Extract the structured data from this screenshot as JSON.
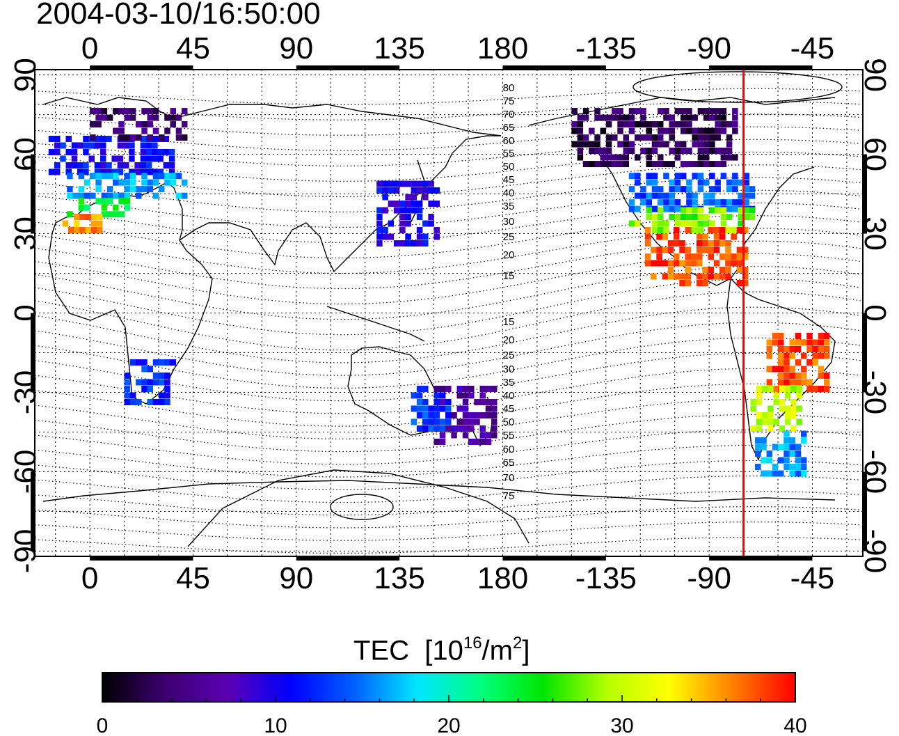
{
  "title": "2004-03-10/16:50:00",
  "map": {
    "lon_ticks": [
      "0",
      "45",
      "90",
      "135",
      "180",
      "-135",
      "-90",
      "-45"
    ],
    "lon_tick_values": [
      0,
      45,
      90,
      135,
      180,
      225,
      270,
      315
    ],
    "lat_ticks": [
      "90",
      "60",
      "30",
      "0",
      "-30",
      "-60",
      "-90"
    ],
    "lat_tick_values": [
      90,
      60,
      30,
      0,
      -30,
      -60,
      -90
    ],
    "lon_range": [
      -24,
      337
    ],
    "lat_range": [
      -92,
      92
    ],
    "grid": "dotted, every 15 degrees",
    "red_meridian_lon": -75,
    "magnetic_lat_labels": [
      "80",
      "75",
      "70",
      "65",
      "60",
      "55",
      "50",
      "45",
      "40",
      "35",
      "30",
      "25",
      "20",
      "15",
      "15",
      "20",
      "25",
      "30",
      "35",
      "40",
      "45",
      "50",
      "55",
      "60",
      "65",
      "70",
      "75"
    ]
  },
  "colorbar": {
    "title": "TEC",
    "unit_prefix": "[10",
    "unit_exp": "16",
    "unit_mid": "/m",
    "unit_exp2": "2",
    "unit_suffix": "]",
    "ticks": [
      "0",
      "10",
      "20",
      "30",
      "40"
    ],
    "tick_values": [
      0,
      10,
      20,
      30,
      40
    ],
    "range": [
      0,
      40
    ],
    "stops": [
      "#000000",
      "#3c0070",
      "#5a00b4",
      "#0000ff",
      "#0060ff",
      "#00e6ff",
      "#00ff80",
      "#00e600",
      "#b4ff00",
      "#ffff00",
      "#ff8000",
      "#ff0000"
    ]
  },
  "chart_data": {
    "type": "heatmap",
    "title": "2004-03-10/16:50:00",
    "xlabel": "",
    "ylabel": "",
    "xlim": [
      -24,
      337
    ],
    "ylim": [
      -92,
      92
    ],
    "colorbar_label": "TEC [10^16/m^2]",
    "colorbar_range": [
      0,
      40
    ],
    "regions": [
      {
        "lon": [
          -18,
          35
        ],
        "lat": [
          52,
          65
        ],
        "tec": 11
      },
      {
        "lon": [
          -10,
          40
        ],
        "lat": [
          43,
          52
        ],
        "tec": 16
      },
      {
        "lon": [
          -10,
          15
        ],
        "lat": [
          36,
          43
        ],
        "tec": 24
      },
      {
        "lon": [
          -12,
          5
        ],
        "lat": [
          30,
          35
        ],
        "tec": 36
      },
      {
        "lon": [
          0,
          40
        ],
        "lat": [
          65,
          75
        ],
        "tec": 4
      },
      {
        "lon": [
          125,
          150
        ],
        "lat": [
          25,
          48
        ],
        "tec": 10
      },
      {
        "lon": [
          -125,
          -72
        ],
        "lat": [
          38,
          52
        ],
        "tec": 14
      },
      {
        "lon": [
          -125,
          -72
        ],
        "lat": [
          30,
          38
        ],
        "tec": 28
      },
      {
        "lon": [
          -118,
          -75
        ],
        "lat": [
          10,
          30
        ],
        "tec": 38
      },
      {
        "lon": [
          -65,
          -40
        ],
        "lat": [
          -30,
          -10
        ],
        "tec": 38
      },
      {
        "lon": [
          -72,
          -50
        ],
        "lat": [
          -45,
          -30
        ],
        "tec": 30
      },
      {
        "lon": [
          -70,
          -50
        ],
        "lat": [
          -62,
          -45
        ],
        "tec": 16
      },
      {
        "lon": [
          -150,
          -80
        ],
        "lat": [
          55,
          75
        ],
        "tec": 3
      },
      {
        "lon": [
          150,
          175
        ],
        "lat": [
          -50,
          -30
        ],
        "tec": 6
      },
      {
        "lon": [
          15,
          35
        ],
        "lat": [
          -35,
          -20
        ],
        "tec": 12
      },
      {
        "lon": [
          140,
          155
        ],
        "lat": [
          -45,
          -30
        ],
        "tec": 13
      }
    ]
  }
}
